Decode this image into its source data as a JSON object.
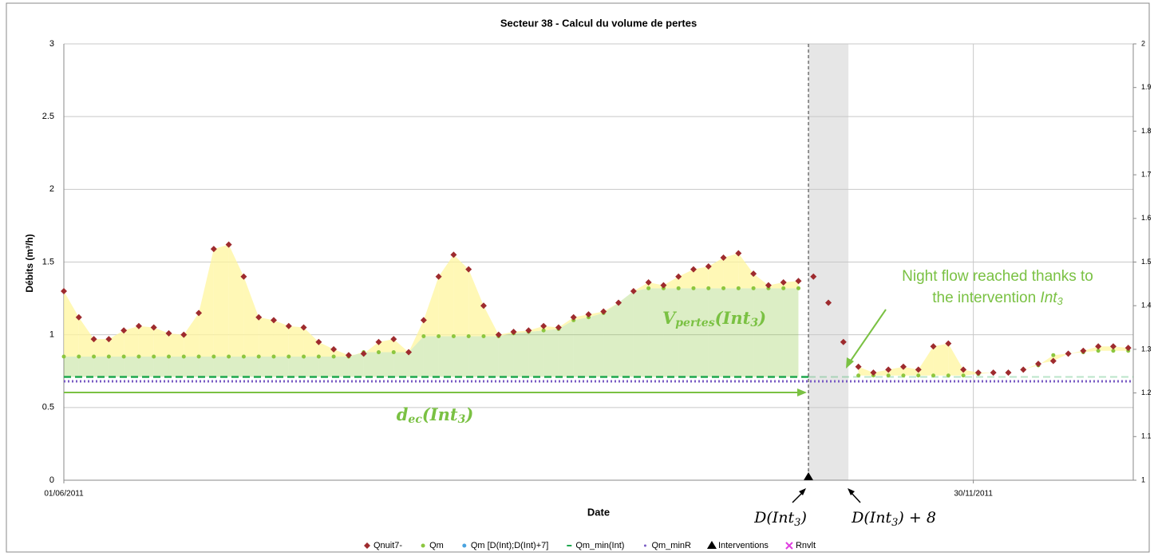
{
  "chart_data": {
    "type": "scatter",
    "title": "Secteur 38 - Calcul du volume de pertes",
    "xlabel": "Date",
    "ylabel": "Débits (m³/h)",
    "xlim": [
      0,
      214
    ],
    "xticks": [
      {
        "value": 0,
        "label": "01/06/2011"
      },
      {
        "value": 182,
        "label": "30/11/2011"
      }
    ],
    "ylim": [
      0,
      3
    ],
    "yticks": [
      0,
      0.5,
      1,
      1.5,
      2,
      2.5,
      3
    ],
    "y2lim": [
      1,
      2
    ],
    "y2ticks": [
      1,
      1.1,
      1.2,
      1.3,
      1.4,
      1.5,
      1.6,
      1.7,
      1.8,
      1.9,
      2
    ],
    "grid": true,
    "legend": "bottom",
    "shade": [
      149,
      157
    ],
    "x": [
      0,
      3,
      6,
      9,
      12,
      15,
      18,
      21,
      24,
      27,
      30,
      33,
      36,
      39,
      42,
      45,
      48,
      51,
      54,
      57,
      60,
      63,
      66,
      69,
      72,
      75,
      78,
      81,
      84,
      87,
      90,
      93,
      96,
      99,
      102,
      105,
      108,
      111,
      114,
      117,
      120,
      123,
      126,
      129,
      132,
      135,
      138,
      141,
      144,
      147,
      150,
      153,
      156,
      159,
      162,
      165,
      168,
      171,
      174,
      177,
      180,
      183,
      186,
      189,
      192,
      195,
      198,
      201,
      204,
      207,
      210,
      213
    ],
    "series": [
      {
        "name": "Qnuit7-",
        "color": "#9e2b2e",
        "marker": "diamond",
        "values": [
          1.3,
          1.12,
          0.97,
          0.97,
          1.03,
          1.06,
          1.05,
          1.01,
          1.0,
          1.15,
          1.59,
          1.62,
          1.4,
          1.12,
          1.1,
          1.06,
          1.05,
          0.95,
          0.9,
          0.86,
          0.87,
          0.95,
          0.97,
          0.88,
          1.1,
          1.4,
          1.55,
          1.45,
          1.2,
          1.0,
          1.02,
          1.03,
          1.06,
          1.05,
          1.12,
          1.14,
          1.16,
          1.22,
          1.3,
          1.36,
          1.34,
          1.4,
          1.45,
          1.47,
          1.53,
          1.56,
          1.42,
          1.34,
          1.36,
          1.37,
          1.4,
          1.22,
          0.95,
          0.78,
          0.74,
          0.76,
          0.78,
          0.76,
          0.92,
          0.94,
          0.76,
          0.74,
          0.74,
          0.74,
          0.76,
          0.8,
          0.82,
          0.87,
          0.89,
          0.92,
          0.92,
          0.91
        ]
      },
      {
        "name": "Qm",
        "color": "#8cc63f",
        "marker": "circle",
        "values": [
          0.85,
          0.85,
          0.85,
          0.85,
          0.85,
          0.85,
          0.85,
          0.85,
          0.85,
          0.85,
          0.85,
          0.85,
          0.85,
          0.85,
          0.85,
          0.85,
          0.85,
          0.85,
          0.85,
          0.85,
          0.88,
          0.88,
          0.88,
          0.88,
          0.99,
          0.99,
          0.99,
          0.99,
          0.99,
          0.99,
          1.01,
          1.02,
          1.03,
          1.04,
          1.1,
          1.12,
          1.15,
          1.22,
          1.3,
          1.32,
          1.32,
          1.32,
          1.32,
          1.32,
          1.32,
          1.32,
          1.32,
          1.32,
          1.32,
          1.32,
          null,
          null,
          null,
          0.72,
          0.72,
          0.72,
          0.72,
          0.72,
          0.72,
          0.72,
          0.72,
          0.73,
          0.74,
          0.74,
          0.76,
          0.79,
          0.86,
          0.87,
          0.88,
          0.89,
          0.89,
          0.89
        ]
      },
      {
        "name": "Qm [D(Int);D(Int)+7]",
        "color": "#4aa3df",
        "marker": "circle",
        "values": [
          null,
          null,
          null,
          null,
          null,
          null,
          null,
          null,
          null,
          null,
          null,
          null,
          null,
          null,
          null,
          null,
          null,
          null,
          null,
          null,
          null,
          null,
          null,
          null,
          null,
          null,
          null,
          null,
          null,
          null,
          null,
          null,
          null,
          null,
          null,
          null,
          null,
          null,
          null,
          null,
          null,
          null,
          null,
          null,
          null,
          null,
          null,
          null,
          null,
          null,
          1.4,
          1.22,
          0.95,
          null,
          null,
          null,
          null,
          null,
          null,
          null,
          null,
          null,
          null,
          null,
          null,
          null,
          null,
          null,
          null,
          null,
          null,
          null
        ]
      },
      {
        "name": "Qm_min(Int)",
        "color": "#1fa84f",
        "marker": "dash",
        "x": [
          0,
          149
        ],
        "values": [
          0.71,
          0.71
        ]
      },
      {
        "name": "Qm_minR",
        "color": "#7a5cc4",
        "marker": "dot",
        "x": [
          0,
          214
        ],
        "values": [
          0.68,
          0.68
        ]
      },
      {
        "name": "Interventions",
        "color": "#000000",
        "marker": "triangle",
        "x": [
          149
        ],
        "values": [
          0
        ]
      },
      {
        "name": "Rnvlt",
        "color": "#e040e0",
        "marker": "cross",
        "x": [],
        "values": []
      }
    ],
    "annotations": {
      "night_flow_line1": "Night flow reached thanks to",
      "night_flow_line2": [
        "the intervention ",
        "Int",
        "3"
      ],
      "v_pertes": [
        "V",
        "pertes",
        "(Int",
        "3",
        ")"
      ],
      "d_ec": [
        "d",
        "ec",
        "(Int",
        "3",
        ")"
      ],
      "d_int": [
        "D(Int",
        "3",
        ")"
      ],
      "d_int_8": [
        "D(Int",
        "3",
        ") + 8"
      ]
    }
  }
}
